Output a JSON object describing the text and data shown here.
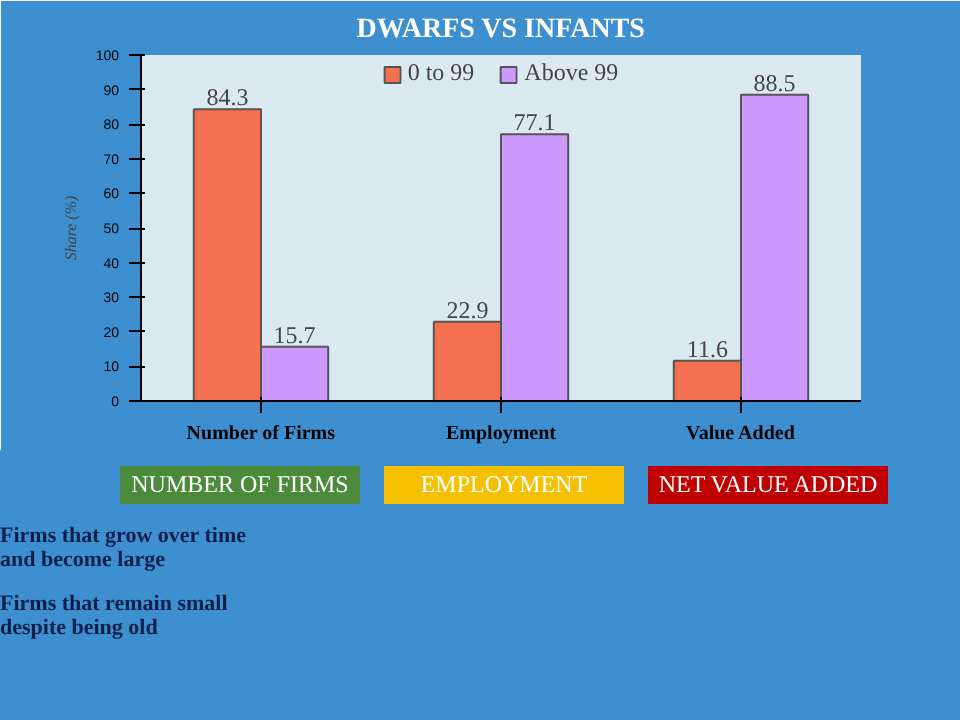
{
  "chart_data": {
    "type": "bar",
    "title": "DWARFS VS INFANTS",
    "ylabel": "Share (%)",
    "categories": [
      "Number of Firms",
      "Employment",
      "Value Added"
    ],
    "series": [
      {
        "name": "0 to 99",
        "color": "#f4704f",
        "values": [
          84.3,
          22.9,
          11.6
        ]
      },
      {
        "name": "Above 99",
        "color": "#cc99ff",
        "values": [
          15.7,
          77.1,
          88.5
        ]
      }
    ],
    "ylim": [
      0,
      100
    ],
    "yticks": [
      0,
      10,
      20,
      30,
      40,
      50,
      60,
      70,
      80,
      90,
      100
    ],
    "grid": false,
    "legend": "top",
    "data_labels": true,
    "annotations": [
      "NUMBER OF FIRMS",
      "EMPLOYMENT",
      "NET VALUE ADDED",
      "Firms that grow over time and become large",
      "Firms that remain small despite being old"
    ]
  }
}
